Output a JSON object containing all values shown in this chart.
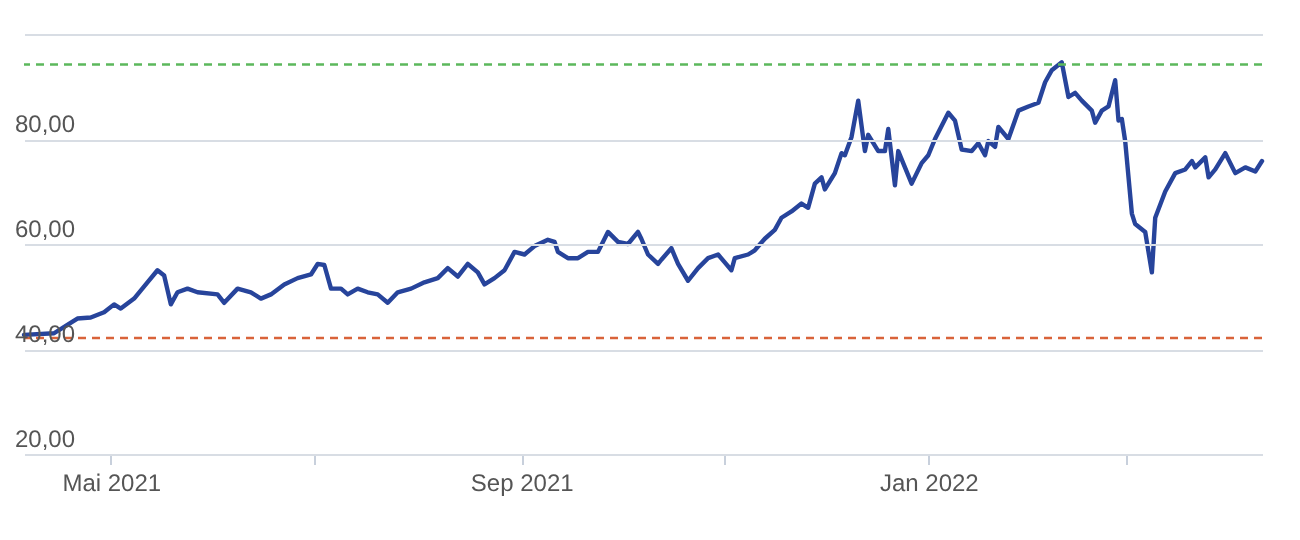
{
  "chart_data": {
    "type": "line",
    "x": [
      "2021-04-05",
      "2021-04-14",
      "2021-04-18",
      "2021-04-21",
      "2021-04-25",
      "2021-04-29",
      "2021-05-02",
      "2021-05-04",
      "2021-05-08",
      "2021-05-12",
      "2021-05-15",
      "2021-05-17",
      "2021-05-19",
      "2021-05-21",
      "2021-05-24",
      "2021-05-27",
      "2021-06-02",
      "2021-06-04",
      "2021-06-08",
      "2021-06-12",
      "2021-06-15",
      "2021-06-18",
      "2021-06-22",
      "2021-06-26",
      "2021-06-30",
      "2021-07-02",
      "2021-07-04",
      "2021-07-06",
      "2021-07-09",
      "2021-07-11",
      "2021-07-14",
      "2021-07-17",
      "2021-07-20",
      "2021-07-23",
      "2021-07-26",
      "2021-07-30",
      "2021-08-03",
      "2021-08-07",
      "2021-08-10",
      "2021-08-13",
      "2021-08-16",
      "2021-08-19",
      "2021-08-21",
      "2021-08-24",
      "2021-08-27",
      "2021-08-30",
      "2021-09-02",
      "2021-09-05",
      "2021-09-09",
      "2021-09-11",
      "2021-09-12",
      "2021-09-15",
      "2021-09-18",
      "2021-09-21",
      "2021-09-24",
      "2021-09-27",
      "2021-09-30",
      "2021-10-03",
      "2021-10-06",
      "2021-10-07",
      "2021-10-09",
      "2021-10-12",
      "2021-10-13",
      "2021-10-16",
      "2021-10-18",
      "2021-10-21",
      "2021-10-24",
      "2021-10-27",
      "2021-10-30",
      "2021-11-01",
      "2021-11-03",
      "2021-11-04",
      "2021-11-08",
      "2021-11-10",
      "2021-11-13",
      "2021-11-16",
      "2021-11-18",
      "2021-11-21",
      "2021-11-24",
      "2021-11-26",
      "2021-11-28",
      "2021-11-30",
      "2021-12-01",
      "2021-12-04",
      "2021-12-06",
      "2021-12-07",
      "2021-12-09",
      "2021-12-11",
      "2021-12-13",
      "2021-12-14",
      "2021-12-17",
      "2021-12-19",
      "2021-12-20",
      "2021-12-22",
      "2021-12-23",
      "2021-12-27",
      "2021-12-30",
      "2022-01-01",
      "2022-01-03",
      "2022-01-07",
      "2022-01-09",
      "2022-01-11",
      "2022-01-14",
      "2022-01-16",
      "2022-01-18",
      "2022-01-19",
      "2022-01-21",
      "2022-01-22",
      "2022-01-25",
      "2022-01-28",
      "2022-01-31",
      "2022-02-03",
      "2022-02-05",
      "2022-02-07",
      "2022-02-10",
      "2022-02-12",
      "2022-02-14",
      "2022-02-16",
      "2022-02-19",
      "2022-02-20",
      "2022-02-22",
      "2022-02-24",
      "2022-02-26",
      "2022-02-27",
      "2022-02-28",
      "2022-03-01",
      "2022-03-03",
      "2022-03-04",
      "2022-03-07",
      "2022-03-09",
      "2022-03-10",
      "2022-03-13",
      "2022-03-16",
      "2022-03-19",
      "2022-03-21",
      "2022-03-22",
      "2022-03-25",
      "2022-03-26",
      "2022-03-28",
      "2022-03-31",
      "2022-04-03",
      "2022-04-06",
      "2022-04-09",
      "2022-04-11"
    ],
    "series": [
      {
        "color": "#27449b",
        "values": [
          42.7,
          43,
          44.6,
          45.8,
          46,
          47,
          48.5,
          47.7,
          49.6,
          52.7,
          55,
          54,
          48.5,
          50.8,
          51.5,
          50.8,
          50.4,
          48.8,
          51.5,
          50.8,
          49.6,
          50.4,
          52.3,
          53.5,
          54.2,
          56.2,
          56,
          51.5,
          51.5,
          50.4,
          51.5,
          50.8,
          50.4,
          48.8,
          50.8,
          51.5,
          52.7,
          53.5,
          55.4,
          53.8,
          56.2,
          54.6,
          52.3,
          53.5,
          55,
          58.5,
          58,
          59.6,
          60.8,
          60.4,
          58.5,
          57.3,
          57.3,
          58.5,
          58.5,
          62.3,
          60.4,
          60,
          62.3,
          61,
          58,
          56.2,
          57,
          59.2,
          56.2,
          53,
          55.4,
          57.3,
          58,
          56.5,
          55,
          57.3,
          58,
          58.8,
          61,
          62.7,
          65,
          66.2,
          67.7,
          66.9,
          71.5,
          72.7,
          70.4,
          73.5,
          77.3,
          76.9,
          80.4,
          87.3,
          77.7,
          80.8,
          77.7,
          77.7,
          81.9,
          71.2,
          77.7,
          71.5,
          75.4,
          76.9,
          80,
          85,
          83.5,
          78,
          77.7,
          79.2,
          76.9,
          79.6,
          78.5,
          82.3,
          80,
          85.4,
          86.2,
          86.9,
          90.8,
          93.1,
          94.6,
          88,
          88.8,
          87.3,
          85.4,
          83.1,
          85.4,
          86.2,
          91.2,
          83.5,
          83.8,
          79.6,
          65.8,
          63.8,
          62.3,
          54.6,
          65,
          70,
          73.5,
          74.2,
          75.8,
          74.6,
          76.5,
          72.7,
          74.2,
          77.3,
          73.5,
          74.6,
          73.8,
          75.8
        ]
      }
    ],
    "xlim": [
      "2021-04-05",
      "2022-04-11"
    ],
    "xticks": [
      {
        "value": "2021-05-01",
        "label": "Mai 2021"
      },
      {
        "value": "2021-07-01",
        "label": null
      },
      {
        "value": "2021-09-01",
        "label": "Sep 2021"
      },
      {
        "value": "2021-11-01",
        "label": null
      },
      {
        "value": "2022-01-01",
        "label": "Jan 2022"
      },
      {
        "value": "2022-03-01",
        "label": null
      }
    ],
    "ylim": [
      20,
      100
    ],
    "yticks": [
      {
        "value": 20,
        "label": "20,00"
      },
      {
        "value": 40,
        "label": "40,00"
      },
      {
        "value": 60,
        "label": "60,00"
      },
      {
        "value": 80,
        "label": "80,00"
      },
      {
        "value": 100,
        "label": null
      }
    ],
    "grid": "y",
    "line_style": "solid",
    "ref_lines": [
      {
        "axis": "y",
        "value": 94.2,
        "color": "#5cb85c",
        "line_style": "dashed"
      },
      {
        "axis": "y",
        "value": 42.1,
        "color": "#d9633a",
        "line_style": "dashed"
      }
    ]
  }
}
